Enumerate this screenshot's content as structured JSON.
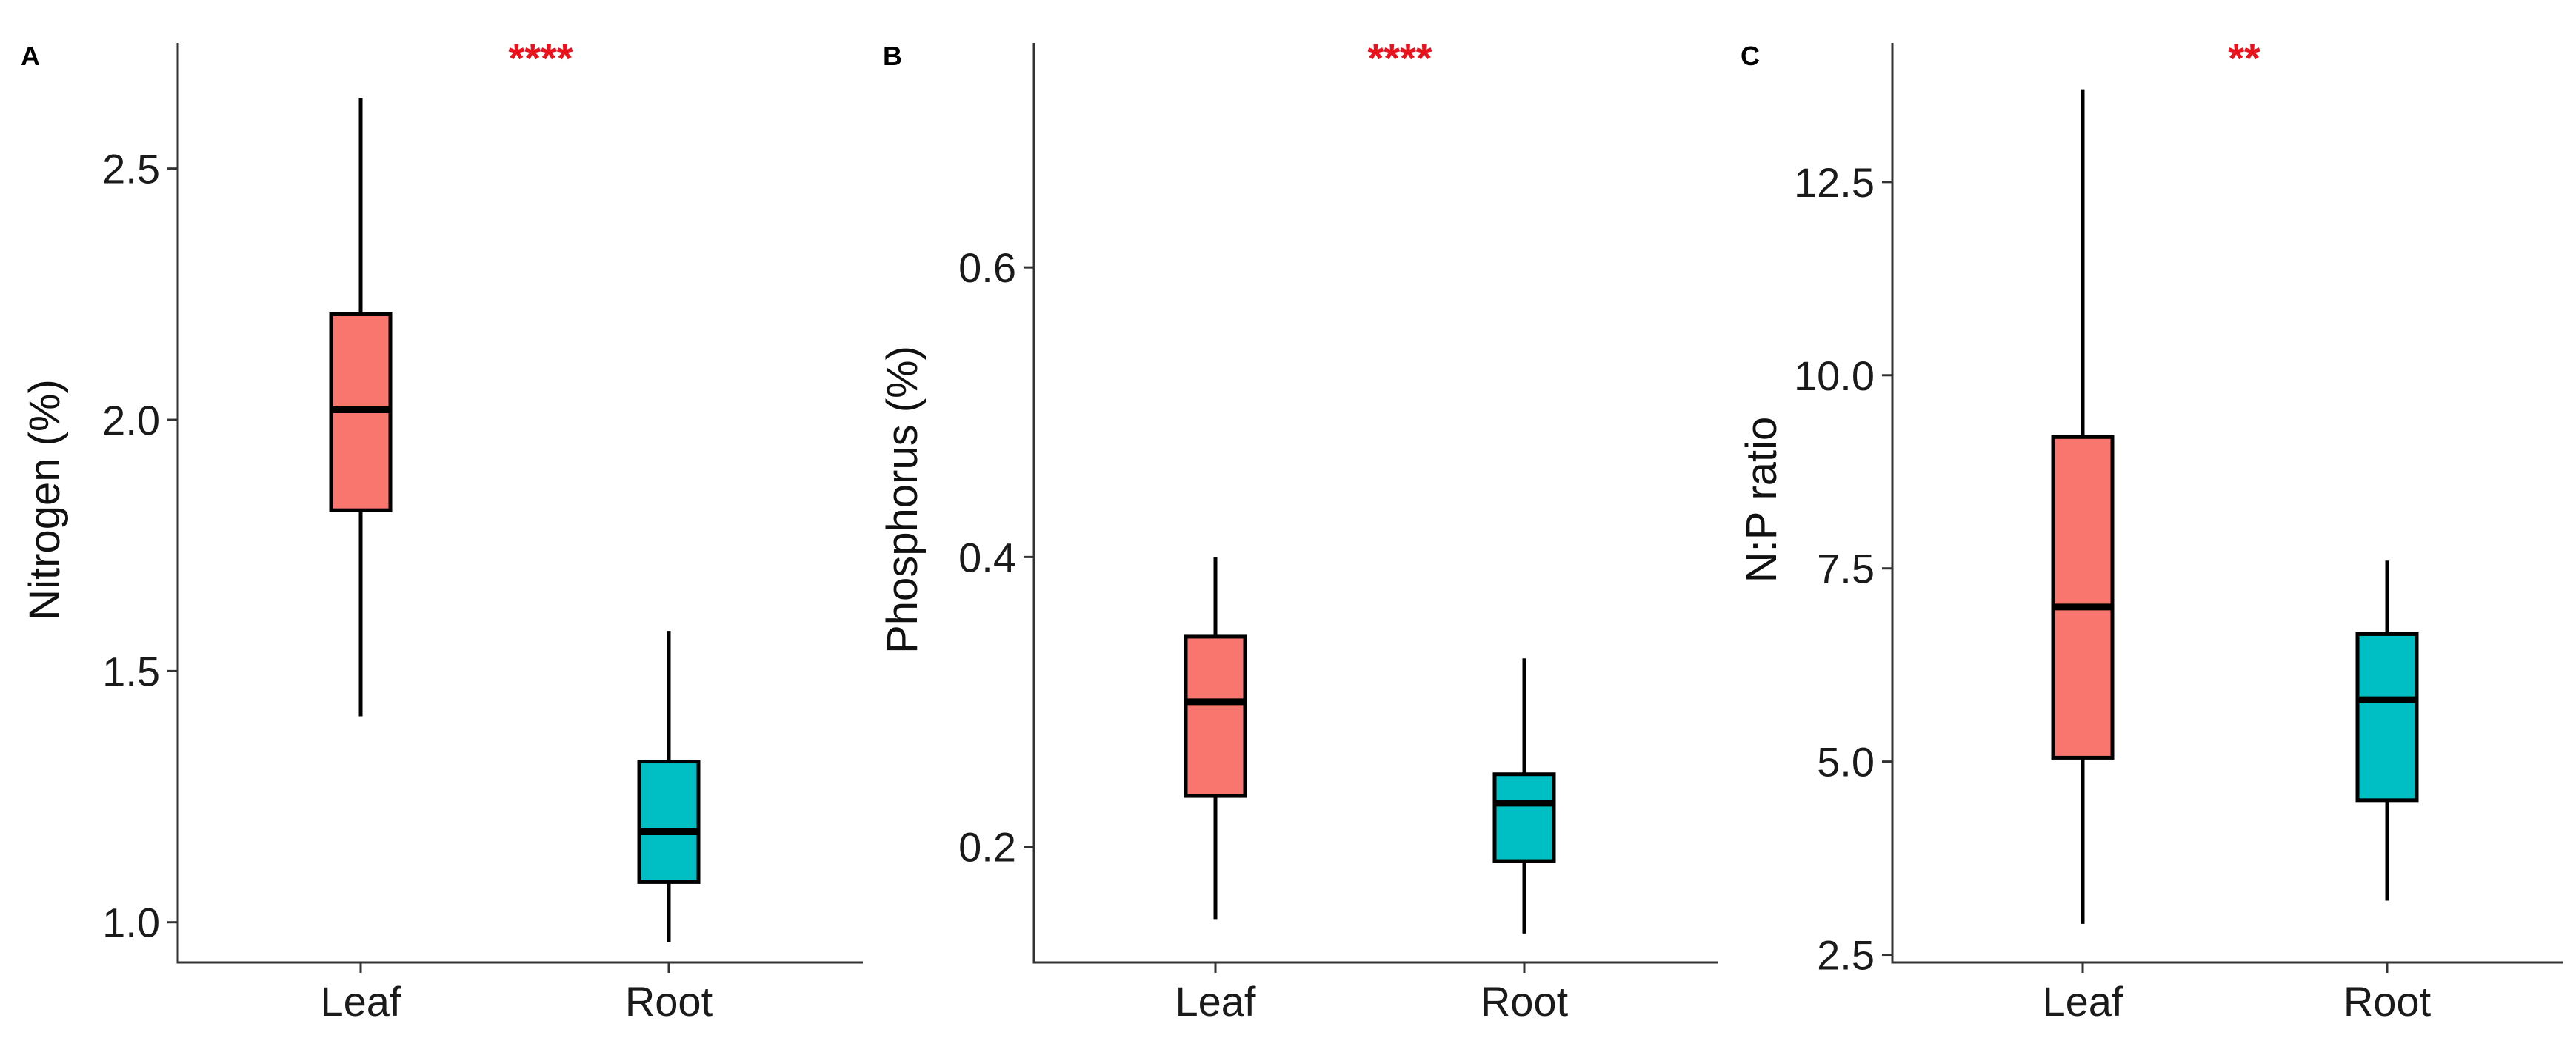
{
  "figure_colors": {
    "leaf_fill": "#F8766D",
    "root_fill": "#00BFC4",
    "significance": "#E8131C",
    "axis": "#333333"
  },
  "chart_data": [
    {
      "type": "boxplot",
      "panel_label": "A",
      "significance": "****",
      "ylabel": "Nitrogen (%)",
      "xlabel": "",
      "categories": [
        "Leaf",
        "Root"
      ],
      "ylim": [
        0.92,
        2.75
      ],
      "yticks": [
        1.0,
        1.5,
        2.0,
        2.5
      ],
      "ytick_labels": [
        "1.0",
        "1.5",
        "2.0",
        "2.5"
      ],
      "boxes": [
        {
          "name": "Leaf",
          "whisker_low": 1.41,
          "q1": 1.82,
          "median": 2.02,
          "q3": 2.21,
          "whisker_high": 2.64
        },
        {
          "name": "Root",
          "whisker_low": 0.96,
          "q1": 1.08,
          "median": 1.18,
          "q3": 1.32,
          "whisker_high": 1.58
        }
      ]
    },
    {
      "type": "boxplot",
      "panel_label": "B",
      "significance": "****",
      "ylabel": "Phosphorus (%)",
      "xlabel": "",
      "categories": [
        "Leaf",
        "Root"
      ],
      "ylim": [
        0.12,
        0.755
      ],
      "yticks": [
        0.2,
        0.4,
        0.6
      ],
      "ytick_labels": [
        "0.2",
        "0.4",
        "0.6"
      ],
      "boxes": [
        {
          "name": "Leaf",
          "whisker_low": 0.15,
          "q1": 0.235,
          "median": 0.3,
          "q3": 0.345,
          "whisker_high": 0.4
        },
        {
          "name": "Root",
          "whisker_low": 0.14,
          "q1": 0.19,
          "median": 0.23,
          "q3": 0.25,
          "whisker_high": 0.33
        }
      ]
    },
    {
      "type": "boxplot",
      "panel_label": "C",
      "significance": "**",
      "ylabel": "N:P ratio",
      "xlabel": "",
      "categories": [
        "Leaf",
        "Root"
      ],
      "ylim": [
        2.4,
        14.3
      ],
      "yticks": [
        2.5,
        5.0,
        7.5,
        10.0,
        12.5
      ],
      "ytick_labels": [
        "2.5",
        "5.0",
        "7.5",
        "10.0",
        "12.5"
      ],
      "boxes": [
        {
          "name": "Leaf",
          "whisker_low": 2.9,
          "q1": 5.05,
          "median": 7.0,
          "q3": 9.2,
          "whisker_high": 13.7
        },
        {
          "name": "Root",
          "whisker_low": 3.2,
          "q1": 4.5,
          "median": 5.8,
          "q3": 6.65,
          "whisker_high": 7.6
        }
      ]
    }
  ]
}
